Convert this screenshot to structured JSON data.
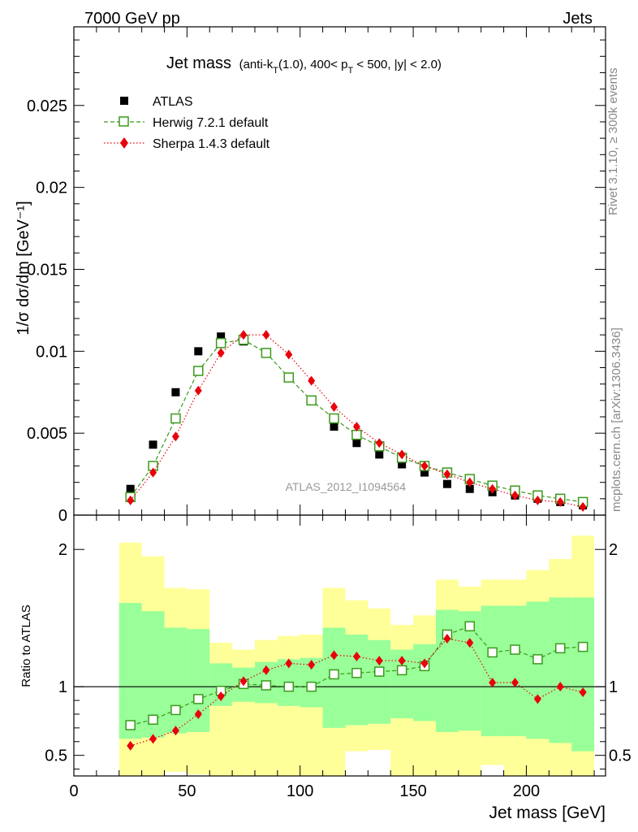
{
  "header": {
    "left": "7000 GeV pp",
    "right": "Jets"
  },
  "side_text": {
    "top": "Rivet 3.1.10, ≥ 300k events",
    "bottom": "mcplots.cern.ch [arXiv:1306.3436]"
  },
  "chart_data": [
    {
      "type": "scatter",
      "title_main": "Jet mass",
      "title_sub": "(anti-k",
      "title_sub_T": "T",
      "title_sub_mid": "(1.0), 400< p",
      "title_sub_T2": "T",
      "title_sub_end": " < 500, |y| < 2.0)",
      "ylabel": "1/σ dσ/dm [GeV⁻¹]",
      "xlabel": "",
      "ylim": [
        0,
        0.0298
      ],
      "xlim": [
        0,
        235
      ],
      "yticks": [
        0,
        0.005,
        0.01,
        0.015,
        0.02,
        0.025
      ],
      "ytick_labels": [
        "0",
        "0.005",
        "0.01",
        "0.015",
        "0.02",
        "0.025"
      ],
      "watermark": "ATLAS_2012_I1094564",
      "legend": [
        "ATLAS",
        "Herwig 7.2.1 default",
        "Sherpa 1.4.3 default"
      ],
      "x": [
        25,
        35,
        45,
        55,
        65,
        75,
        85,
        95,
        105,
        115,
        125,
        135,
        145,
        155,
        165,
        175,
        185,
        195,
        205,
        215,
        225
      ],
      "series": [
        {
          "name": "ATLAS",
          "color": "#000000",
          "values": [
            0.0016,
            0.0043,
            0.0075,
            0.01,
            0.0109,
            0.0106,
            0.0099,
            0.0084,
            0.007,
            0.0054,
            0.0044,
            0.0037,
            0.0031,
            0.0026,
            0.0019,
            0.0016,
            0.0014,
            0.0012,
            0.001,
            0.0008,
            0.0006
          ]
        },
        {
          "name": "Herwig 7.2.1 default",
          "color": "#3a9a1a",
          "values": [
            0.0011,
            0.003,
            0.0059,
            0.0088,
            0.0105,
            0.0107,
            0.0099,
            0.0084,
            0.007,
            0.0059,
            0.0049,
            0.0042,
            0.0035,
            0.003,
            0.0026,
            0.0022,
            0.0018,
            0.0015,
            0.0012,
            0.001,
            0.0008
          ]
        },
        {
          "name": "Sherpa 1.4.3 default",
          "color": "#e8000b",
          "values": [
            0.0009,
            0.0026,
            0.0048,
            0.0076,
            0.0099,
            0.011,
            0.011,
            0.0098,
            0.0082,
            0.0066,
            0.0054,
            0.0044,
            0.0037,
            0.003,
            0.0025,
            0.002,
            0.0016,
            0.0012,
            0.0009,
            0.0008,
            0.0005
          ]
        }
      ]
    },
    {
      "type": "scatter",
      "title": "",
      "ylabel": "Ratio to ATLAS",
      "xlabel": "Jet mass [GeV]",
      "ylim": [
        0.35,
        2.25
      ],
      "xlim": [
        0,
        235
      ],
      "yticks": [
        0.5,
        1,
        2
      ],
      "ytick_labels": [
        "0.5",
        "1",
        "2"
      ],
      "xticks": [
        0,
        50,
        100,
        150,
        200
      ],
      "xtick_labels": [
        "0",
        "50",
        "100",
        "150",
        "200"
      ],
      "bin_edges": [
        20,
        30,
        40,
        50,
        60,
        70,
        80,
        90,
        100,
        110,
        120,
        130,
        140,
        150,
        160,
        170,
        180,
        190,
        200,
        210,
        220,
        230
      ],
      "band_yellow_hi": [
        2.05,
        1.95,
        1.72,
        1.71,
        1.32,
        1.27,
        1.34,
        1.37,
        1.38,
        1.72,
        1.63,
        1.57,
        1.45,
        1.52,
        1.78,
        1.73,
        1.78,
        1.78,
        1.85,
        1.93,
        2.1
      ],
      "band_yellow_lo": [
        0.35,
        0.35,
        0.38,
        0.36,
        0.35,
        0.35,
        0.35,
        0.35,
        0.35,
        0.35,
        0.53,
        0.54,
        0.35,
        0.35,
        0.35,
        0.35,
        0.43,
        0.35,
        0.35,
        0.35,
        0.35
      ],
      "band_green_hi": [
        1.61,
        1.55,
        1.43,
        1.42,
        1.17,
        1.14,
        1.18,
        1.2,
        1.21,
        1.43,
        1.38,
        1.34,
        1.27,
        1.31,
        1.56,
        1.55,
        1.59,
        1.59,
        1.62,
        1.65,
        1.65
      ],
      "band_green_lo": [
        0.62,
        0.63,
        0.66,
        0.67,
        0.86,
        0.89,
        0.88,
        0.86,
        0.85,
        0.7,
        0.72,
        0.73,
        0.77,
        0.75,
        0.67,
        0.68,
        0.64,
        0.64,
        0.62,
        0.59,
        0.53
      ],
      "series": [
        {
          "name": "Herwig 7.2.1 default",
          "color": "#3a9a1a",
          "values": [
            0.72,
            0.76,
            0.83,
            0.91,
            0.97,
            1.02,
            1.01,
            1.0,
            1.0,
            1.09,
            1.1,
            1.11,
            1.12,
            1.15,
            1.38,
            1.44,
            1.25,
            1.27,
            1.2,
            1.28,
            1.29
          ]
        },
        {
          "name": "Sherpa 1.4.3 default",
          "color": "#e8000b",
          "values": [
            0.57,
            0.62,
            0.68,
            0.8,
            0.93,
            1.04,
            1.12,
            1.17,
            1.16,
            1.23,
            1.22,
            1.19,
            1.19,
            1.17,
            1.35,
            1.32,
            1.03,
            1.03,
            0.91,
            1.0,
            0.96
          ]
        }
      ]
    }
  ]
}
